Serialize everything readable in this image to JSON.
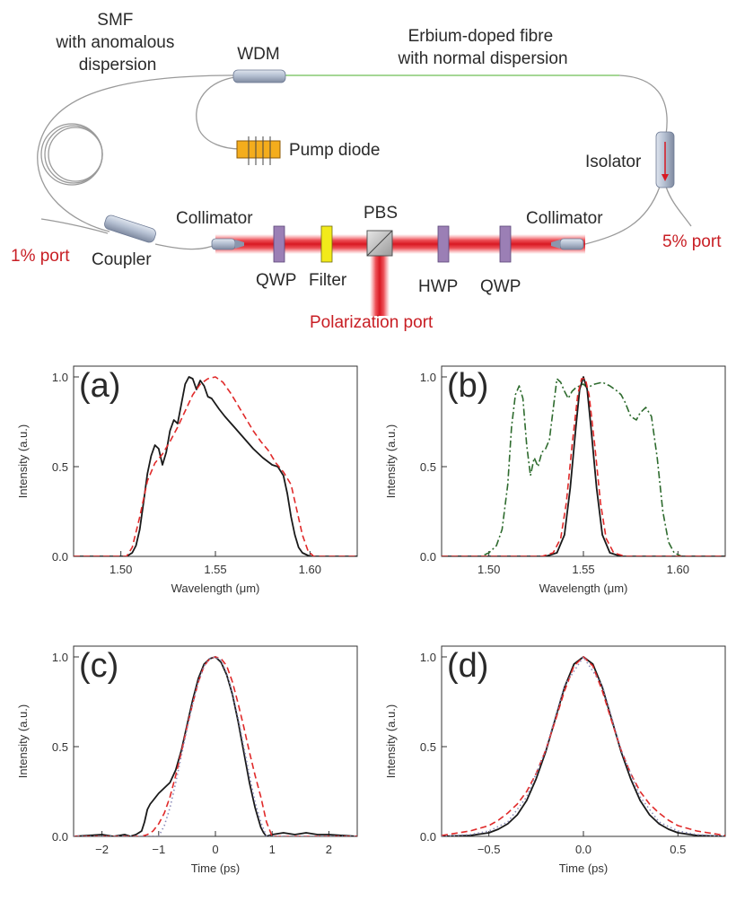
{
  "diagram": {
    "labels": {
      "smf": [
        "SMF",
        "with anomalous",
        "dispersion"
      ],
      "wdm": "WDM",
      "edf": [
        "Erbium-doped fibre",
        "with normal dispersion"
      ],
      "pump": "Pump diode",
      "isolator": "Isolator",
      "port_5": "5% port",
      "port_1": "1% port",
      "coupler": "Coupler",
      "collimator_left": "Collimator",
      "collimator_right": "Collimator",
      "pbs": "PBS",
      "qwp_left": "QWP",
      "filter": "Filter",
      "hwp": "HWP",
      "qwp_right": "QWP",
      "polarization_port": "Polarization port"
    },
    "colors": {
      "fibre": "#9a9a9a",
      "doped_fibre": "#8fd27a",
      "beam": "#e0202a",
      "red_text": "#c81e24",
      "waveplate": "#9b7fb5",
      "filter": "#f2ea1a",
      "pump": "#f4ad1c",
      "component": "#aeb9cc"
    }
  },
  "chart_data": [
    {
      "id": "a",
      "panel_label": "(a)",
      "type": "line",
      "xlabel": "Wavelength (μm)",
      "ylabel": "Intensity (a.u.)",
      "xlim": [
        1.475,
        1.625
      ],
      "ylim": [
        0,
        1.0
      ],
      "xticks": [
        1.5,
        1.55,
        1.6
      ],
      "xtick_labels": [
        "1.50",
        "1.55",
        "1.60"
      ],
      "yticks": [
        0.0,
        0.5,
        1.0
      ],
      "ytick_labels": [
        "0.0",
        "0.5",
        "1.0"
      ],
      "series": [
        {
          "style": "solid",
          "color": "#1a1a1a",
          "x": [
            1.475,
            1.503,
            1.506,
            1.508,
            1.51,
            1.512,
            1.514,
            1.516,
            1.518,
            1.52,
            1.522,
            1.524,
            1.526,
            1.528,
            1.53,
            1.532,
            1.534,
            1.536,
            1.538,
            1.54,
            1.542,
            1.544,
            1.546,
            1.548,
            1.55,
            1.552,
            1.555,
            1.56,
            1.565,
            1.57,
            1.575,
            1.58,
            1.583,
            1.586,
            1.588,
            1.59,
            1.592,
            1.594,
            1.596,
            1.598,
            1.6,
            1.625
          ],
          "y": [
            0,
            0,
            0.02,
            0.06,
            0.15,
            0.3,
            0.46,
            0.56,
            0.62,
            0.6,
            0.51,
            0.58,
            0.7,
            0.76,
            0.74,
            0.85,
            0.96,
            1.0,
            0.99,
            0.93,
            0.98,
            0.95,
            0.89,
            0.88,
            0.85,
            0.82,
            0.78,
            0.72,
            0.66,
            0.6,
            0.55,
            0.51,
            0.5,
            0.45,
            0.35,
            0.22,
            0.12,
            0.05,
            0.02,
            0.01,
            0,
            0
          ]
        },
        {
          "style": "dashed",
          "color": "#e02a2a",
          "x": [
            1.475,
            1.503,
            1.506,
            1.51,
            1.514,
            1.518,
            1.522,
            1.526,
            1.53,
            1.534,
            1.538,
            1.542,
            1.546,
            1.55,
            1.554,
            1.558,
            1.562,
            1.566,
            1.57,
            1.574,
            1.578,
            1.582,
            1.586,
            1.59,
            1.593,
            1.596,
            1.599,
            1.602,
            1.625
          ],
          "y": [
            0,
            0,
            0.05,
            0.22,
            0.42,
            0.52,
            0.57,
            0.64,
            0.72,
            0.81,
            0.9,
            0.96,
            0.99,
            1.0,
            0.97,
            0.91,
            0.84,
            0.77,
            0.7,
            0.64,
            0.59,
            0.52,
            0.47,
            0.4,
            0.26,
            0.12,
            0.03,
            0,
            0
          ]
        }
      ]
    },
    {
      "id": "b",
      "panel_label": "(b)",
      "type": "line",
      "xlabel": "Wavelength (μm)",
      "ylabel": "Intensity (a.u.)",
      "xlim": [
        1.475,
        1.625
      ],
      "ylim": [
        0,
        1.0
      ],
      "xticks": [
        1.5,
        1.55,
        1.6
      ],
      "xtick_labels": [
        "1.50",
        "1.55",
        "1.60"
      ],
      "yticks": [
        0.0,
        0.5,
        1.0
      ],
      "ytick_labels": [
        "0.0",
        "0.5",
        "1.0"
      ],
      "series": [
        {
          "style": "dashdot",
          "color": "#2e6b2e",
          "x": [
            1.475,
            1.496,
            1.5,
            1.504,
            1.507,
            1.51,
            1.512,
            1.514,
            1.516,
            1.518,
            1.52,
            1.522,
            1.524,
            1.526,
            1.528,
            1.53,
            1.532,
            1.534,
            1.536,
            1.538,
            1.54,
            1.542,
            1.544,
            1.546,
            1.548,
            1.55,
            1.552,
            1.556,
            1.56,
            1.564,
            1.568,
            1.57,
            1.572,
            1.575,
            1.578,
            1.58,
            1.583,
            1.586,
            1.589,
            1.592,
            1.595,
            1.598,
            1.602,
            1.625
          ],
          "y": [
            0,
            0,
            0.02,
            0.06,
            0.15,
            0.4,
            0.72,
            0.9,
            0.95,
            0.88,
            0.62,
            0.45,
            0.55,
            0.5,
            0.58,
            0.6,
            0.65,
            0.82,
            0.99,
            0.97,
            0.92,
            0.88,
            0.92,
            0.94,
            0.95,
            0.96,
            0.94,
            0.96,
            0.97,
            0.95,
            0.92,
            0.9,
            0.86,
            0.78,
            0.76,
            0.8,
            0.83,
            0.78,
            0.55,
            0.25,
            0.08,
            0.02,
            0,
            0
          ]
        },
        {
          "style": "solid",
          "color": "#1a1a1a",
          "x": [
            1.475,
            1.53,
            1.536,
            1.54,
            1.543,
            1.546,
            1.548,
            1.55,
            1.552,
            1.554,
            1.557,
            1.56,
            1.564,
            1.57,
            1.625
          ],
          "y": [
            0,
            0,
            0.02,
            0.12,
            0.38,
            0.72,
            0.93,
            1.0,
            0.93,
            0.72,
            0.38,
            0.12,
            0.02,
            0,
            0
          ]
        },
        {
          "style": "dashed",
          "color": "#e02a2a",
          "x": [
            1.475,
            1.528,
            1.534,
            1.538,
            1.541,
            1.544,
            1.547,
            1.549,
            1.551,
            1.553,
            1.556,
            1.559,
            1.562,
            1.566,
            1.572,
            1.625
          ],
          "y": [
            0,
            0,
            0.02,
            0.1,
            0.3,
            0.62,
            0.9,
            0.99,
            0.99,
            0.9,
            0.62,
            0.3,
            0.1,
            0.02,
            0,
            0
          ]
        }
      ]
    },
    {
      "id": "c",
      "panel_label": "(c)",
      "type": "line",
      "xlabel": "Time (ps)",
      "ylabel": "Intensity (a.u.)",
      "xlim": [
        -2.5,
        2.5
      ],
      "ylim": [
        0,
        1.0
      ],
      "xticks": [
        -2,
        -1,
        0,
        1,
        2
      ],
      "xtick_labels": [
        "−2",
        "−1",
        "0",
        "1",
        "2"
      ],
      "yticks": [
        0.0,
        0.5,
        1.0
      ],
      "ytick_labels": [
        "0.0",
        "0.5",
        "1.0"
      ],
      "series": [
        {
          "style": "solid",
          "color": "#1a1a1a",
          "x": [
            -2.5,
            -2.0,
            -1.8,
            -1.6,
            -1.5,
            -1.4,
            -1.3,
            -1.25,
            -1.2,
            -1.15,
            -1.1,
            -1.0,
            -0.9,
            -0.8,
            -0.7,
            -0.6,
            -0.5,
            -0.4,
            -0.3,
            -0.2,
            -0.1,
            0.0,
            0.1,
            0.2,
            0.3,
            0.4,
            0.5,
            0.6,
            0.7,
            0.8,
            0.85,
            0.9,
            1.0,
            1.2,
            1.4,
            1.6,
            1.8,
            2.0,
            2.5
          ],
          "y": [
            0,
            0.01,
            0,
            0.01,
            0,
            0.01,
            0.03,
            0.08,
            0.15,
            0.18,
            0.2,
            0.24,
            0.27,
            0.3,
            0.37,
            0.48,
            0.62,
            0.76,
            0.88,
            0.96,
            0.99,
            1.0,
            0.97,
            0.9,
            0.79,
            0.64,
            0.47,
            0.3,
            0.16,
            0.05,
            0.02,
            0,
            0.01,
            0.02,
            0.01,
            0.02,
            0.01,
            0.01,
            0
          ]
        },
        {
          "style": "dashed",
          "color": "#e02a2a",
          "x": [
            -2.5,
            -1.3,
            -1.2,
            -1.1,
            -1.0,
            -0.9,
            -0.8,
            -0.7,
            -0.6,
            -0.5,
            -0.4,
            -0.3,
            -0.2,
            -0.1,
            0.0,
            0.1,
            0.2,
            0.3,
            0.4,
            0.5,
            0.6,
            0.7,
            0.8,
            0.9,
            1.0,
            2.5
          ],
          "y": [
            0,
            0,
            0.01,
            0.03,
            0.07,
            0.13,
            0.22,
            0.34,
            0.47,
            0.61,
            0.74,
            0.86,
            0.95,
            0.99,
            1.0,
            0.99,
            0.95,
            0.86,
            0.74,
            0.61,
            0.47,
            0.34,
            0.22,
            0.08,
            0,
            0
          ]
        },
        {
          "style": "dotted",
          "color": "#8a8ab8",
          "x": [
            -2.5,
            -1.0,
            -0.9,
            -0.8,
            -0.7,
            -0.6,
            -0.5,
            -0.4,
            -0.3,
            -0.2,
            -0.1,
            0.0,
            0.1,
            0.2,
            0.3,
            0.4,
            0.5,
            0.6,
            0.7,
            0.8,
            0.9,
            2.5
          ],
          "y": [
            0,
            0,
            0.06,
            0.16,
            0.3,
            0.45,
            0.6,
            0.74,
            0.86,
            0.95,
            0.99,
            1.0,
            0.98,
            0.91,
            0.8,
            0.66,
            0.5,
            0.34,
            0.19,
            0.08,
            0,
            0
          ]
        }
      ]
    },
    {
      "id": "d",
      "panel_label": "(d)",
      "type": "line",
      "xlabel": "Time (ps)",
      "ylabel": "Intensity (a.u.)",
      "xlim": [
        -0.75,
        0.75
      ],
      "ylim": [
        0,
        1.0
      ],
      "xticks": [
        -0.5,
        0.0,
        0.5
      ],
      "xtick_labels": [
        "−0.5",
        "0.0",
        "0.5"
      ],
      "yticks": [
        0.0,
        0.5,
        1.0
      ],
      "ytick_labels": [
        "0.0",
        "0.5",
        "1.0"
      ],
      "series": [
        {
          "style": "solid",
          "color": "#1a1a1a",
          "x": [
            -0.75,
            -0.6,
            -0.5,
            -0.45,
            -0.4,
            -0.35,
            -0.3,
            -0.25,
            -0.2,
            -0.15,
            -0.1,
            -0.05,
            0.0,
            0.05,
            0.1,
            0.15,
            0.2,
            0.25,
            0.3,
            0.35,
            0.4,
            0.45,
            0.5,
            0.6,
            0.75
          ],
          "y": [
            0,
            0.005,
            0.02,
            0.04,
            0.07,
            0.12,
            0.2,
            0.32,
            0.47,
            0.65,
            0.83,
            0.96,
            1.0,
            0.96,
            0.83,
            0.65,
            0.47,
            0.32,
            0.2,
            0.12,
            0.07,
            0.04,
            0.02,
            0.005,
            0
          ]
        },
        {
          "style": "dashed",
          "color": "#e02a2a",
          "x": [
            -0.75,
            -0.6,
            -0.5,
            -0.45,
            -0.4,
            -0.35,
            -0.3,
            -0.25,
            -0.2,
            -0.15,
            -0.1,
            -0.05,
            0.0,
            0.05,
            0.1,
            0.15,
            0.2,
            0.25,
            0.3,
            0.35,
            0.4,
            0.45,
            0.5,
            0.6,
            0.75
          ],
          "y": [
            0.005,
            0.03,
            0.06,
            0.09,
            0.13,
            0.18,
            0.25,
            0.35,
            0.48,
            0.64,
            0.81,
            0.95,
            1.0,
            0.95,
            0.81,
            0.64,
            0.48,
            0.35,
            0.25,
            0.18,
            0.13,
            0.09,
            0.06,
            0.03,
            0.005
          ]
        },
        {
          "style": "dotted",
          "color": "#8a8ab8",
          "x": [
            -0.75,
            -0.6,
            -0.5,
            -0.4,
            -0.3,
            -0.2,
            -0.1,
            0.0,
            0.1,
            0.2,
            0.3,
            0.4,
            0.5,
            0.6,
            0.75
          ],
          "y": [
            0,
            0.01,
            0.03,
            0.08,
            0.22,
            0.48,
            0.84,
            1.0,
            0.84,
            0.48,
            0.22,
            0.08,
            0.03,
            0.01,
            0
          ]
        }
      ]
    }
  ]
}
